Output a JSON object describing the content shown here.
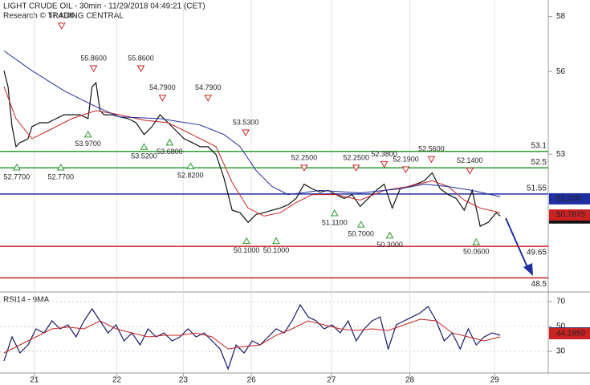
{
  "chart_data": [
    {
      "type": "line",
      "title": "LIGHT CRUDE OIL - 30min - 11/29/2018 04:49:21 (CET)",
      "subtitle": "Research © TRADING CENTRAL",
      "xlim": [
        -1,
        136
      ],
      "ylim": [
        48.05,
        58.6
      ],
      "yticks": [
        53,
        56,
        58
      ],
      "series": [
        {
          "color": "#111111",
          "last": 50.68,
          "x": [
            0,
            1,
            2,
            3,
            4,
            5,
            6,
            7,
            9,
            11,
            13,
            15,
            17,
            19,
            21,
            22,
            23,
            24,
            25,
            27,
            29,
            31,
            33,
            35,
            37,
            39,
            41,
            43,
            45,
            47,
            49,
            51,
            53,
            55,
            57,
            59,
            61,
            63,
            65,
            67,
            69,
            71,
            73,
            75,
            77,
            79,
            81,
            83,
            85,
            87,
            89,
            91,
            93,
            95,
            97,
            99,
            101,
            103,
            105,
            107,
            109,
            111,
            113,
            115,
            117,
            119,
            121,
            123,
            124
          ],
          "values": [
            56.03,
            55.45,
            54.0,
            53.27,
            53.42,
            53.48,
            53.56,
            54.0,
            54.14,
            54.14,
            54.29,
            54.43,
            54.43,
            54.43,
            54.29,
            55.45,
            55.59,
            54.58,
            54.43,
            54.43,
            54.35,
            54.29,
            54.14,
            53.71,
            54.0,
            54.43,
            54.14,
            53.85,
            53.56,
            53.42,
            53.27,
            53.27,
            52.98,
            52.11,
            50.96,
            50.87,
            50.52,
            50.81,
            50.87,
            50.96,
            51.04,
            51.16,
            51.39,
            51.91,
            51.74,
            51.62,
            51.68,
            51.53,
            51.39,
            51.53,
            51.1,
            51.39,
            51.68,
            51.91,
            51.04,
            51.74,
            51.82,
            51.91,
            52.03,
            52.32,
            51.74,
            51.53,
            51.39,
            50.96,
            51.68,
            50.38,
            50.52,
            50.87,
            50.75
          ]
        },
        {
          "color": "#cc2222",
          "last": 50.7875,
          "x": [
            0,
            3,
            7,
            11,
            17,
            23,
            29,
            35,
            41,
            47,
            53,
            57,
            61,
            65,
            69,
            73,
            77,
            83,
            89,
            95,
            101,
            107,
            111,
            115,
            119,
            124
          ],
          "values": [
            55.45,
            54.29,
            53.56,
            53.85,
            54.29,
            54.58,
            54.43,
            54.23,
            54.14,
            53.71,
            53.27,
            51.97,
            51.04,
            50.75,
            50.87,
            51.24,
            51.53,
            51.53,
            51.33,
            51.68,
            51.82,
            52.03,
            51.82,
            51.33,
            51.04,
            50.87
          ]
        },
        {
          "color": "#1f2fa0",
          "last": 51.376,
          "x": [
            0,
            7,
            15,
            23,
            29,
            39,
            49,
            55,
            59,
            63,
            67,
            71,
            79,
            89,
            99,
            105,
            111,
            117,
            124
          ],
          "values": [
            56.75,
            56.03,
            55.3,
            54.72,
            54.35,
            54.29,
            54.06,
            53.71,
            53.27,
            52.4,
            51.82,
            51.53,
            51.68,
            51.59,
            51.74,
            51.91,
            51.82,
            51.68,
            51.45
          ]
        }
      ],
      "levels": [
        {
          "value": 53.1,
          "color": "#2e9b2e"
        },
        {
          "value": 52.5,
          "color": "#2e9b2e"
        },
        {
          "value": 51.55,
          "color": "#1f2fa0"
        },
        {
          "value": 49.65,
          "color": "#cc2222"
        },
        {
          "value": 48.5,
          "color": "#cc2222"
        }
      ],
      "peaks": {
        "color": "#cc2222",
        "x": [
          14.4,
          22.4,
          34.2,
          39.6,
          51,
          60.4,
          75,
          88,
          95,
          100.4,
          106.8,
          116.4
        ],
        "values": [
          57.41,
          55.86,
          55.86,
          54.79,
          54.79,
          53.53,
          52.25,
          52.25,
          52.38,
          52.19,
          52.56,
          52.14
        ],
        "value_labels": [
          "57.4100",
          "55.8600",
          "55.8600",
          "54.7900",
          "54.7900",
          "53.5300",
          "52.2500",
          "52.2500",
          "52.3800",
          "52.1900",
          "52.5600",
          "52.1400"
        ]
      },
      "troughs": {
        "color": "#2e9b2e",
        "x": [
          3.2,
          14.2,
          21,
          35,
          41.4,
          46.6,
          60.6,
          68,
          82.6,
          89.2,
          96.4,
          118
        ],
        "values": [
          52.77,
          52.77,
          53.97,
          53.52,
          53.68,
          52.82,
          50.1,
          50.1,
          51.11,
          50.7,
          50.3,
          50.06
        ],
        "value_labels": [
          "52.7700",
          "52.7700",
          "53.9700",
          "53.5200",
          "53.6800",
          "52.8200",
          "50.1000",
          "50.1000",
          "51.1100",
          "50.7000",
          "50.3000",
          "50.0600"
        ]
      }
    },
    {
      "type": "line",
      "title": "RSI14 - 9MA",
      "xlim": [
        -1,
        136
      ],
      "ylim": [
        12.6,
        77.1
      ],
      "yticks": [
        30,
        50,
        70
      ],
      "xticks": [
        {
          "value": 7.6,
          "label": "21"
        },
        {
          "value": 28.2,
          "label": "22"
        },
        {
          "value": 44.8,
          "label": "23"
        },
        {
          "value": 61.8,
          "label": "26"
        },
        {
          "value": 81.8,
          "label": "27"
        },
        {
          "value": 101.4,
          "label": "28"
        },
        {
          "value": 122.6,
          "label": "29"
        }
      ],
      "series": [
        {
          "color": "#1a1a6e",
          "last": 44.7511,
          "x": [
            0,
            2,
            4,
            6,
            8,
            10,
            12,
            14,
            16,
            18,
            20,
            22,
            24,
            26,
            28,
            30,
            32,
            34,
            36,
            38,
            40,
            42,
            44,
            46,
            48,
            50,
            52,
            54,
            56,
            58,
            60,
            62,
            64,
            66,
            68,
            70,
            72,
            74,
            76,
            78,
            80,
            82,
            84,
            86,
            88,
            90,
            92,
            94,
            96,
            98,
            100,
            102,
            104,
            106,
            108,
            110,
            112,
            114,
            116,
            118,
            120,
            122,
            124
          ],
          "values": [
            22.3,
            41.6,
            28.7,
            35.2,
            48.1,
            44.8,
            54.5,
            48.1,
            51.3,
            41.6,
            54.5,
            64.2,
            54.5,
            44.8,
            51.3,
            38.4,
            44.8,
            35.2,
            48.1,
            41.6,
            44.8,
            38.4,
            41.6,
            48.1,
            41.6,
            44.8,
            38.4,
            31.9,
            15.8,
            35.2,
            28.7,
            38.4,
            35.2,
            41.6,
            48.1,
            44.8,
            54.5,
            67.4,
            57.7,
            54.5,
            48.1,
            51.3,
            44.8,
            54.5,
            38.4,
            48.1,
            54.5,
            57.7,
            31.9,
            51.3,
            54.5,
            57.7,
            61.0,
            66.1,
            54.5,
            38.4,
            44.8,
            31.9,
            48.1,
            35.2,
            41.6,
            44.8,
            42.9
          ]
        },
        {
          "color": "#cc2222",
          "last": 44.1859,
          "x": [
            0,
            4,
            8,
            12,
            16,
            20,
            24,
            28,
            32,
            36,
            40,
            44,
            48,
            52,
            56,
            60,
            64,
            68,
            72,
            76,
            80,
            84,
            88,
            92,
            96,
            100,
            104,
            108,
            112,
            116,
            120,
            124
          ],
          "values": [
            28.7,
            35.2,
            41.6,
            48.1,
            49.4,
            48.1,
            54.5,
            48.1,
            44.8,
            41.6,
            42.9,
            42.9,
            44.8,
            41.6,
            31.9,
            33.9,
            35.2,
            42.9,
            48.1,
            54.5,
            51.3,
            48.1,
            46.8,
            48.1,
            46.8,
            51.3,
            55.8,
            54.5,
            44.8,
            41.6,
            38.4,
            41.6
          ]
        }
      ]
    }
  ]
}
